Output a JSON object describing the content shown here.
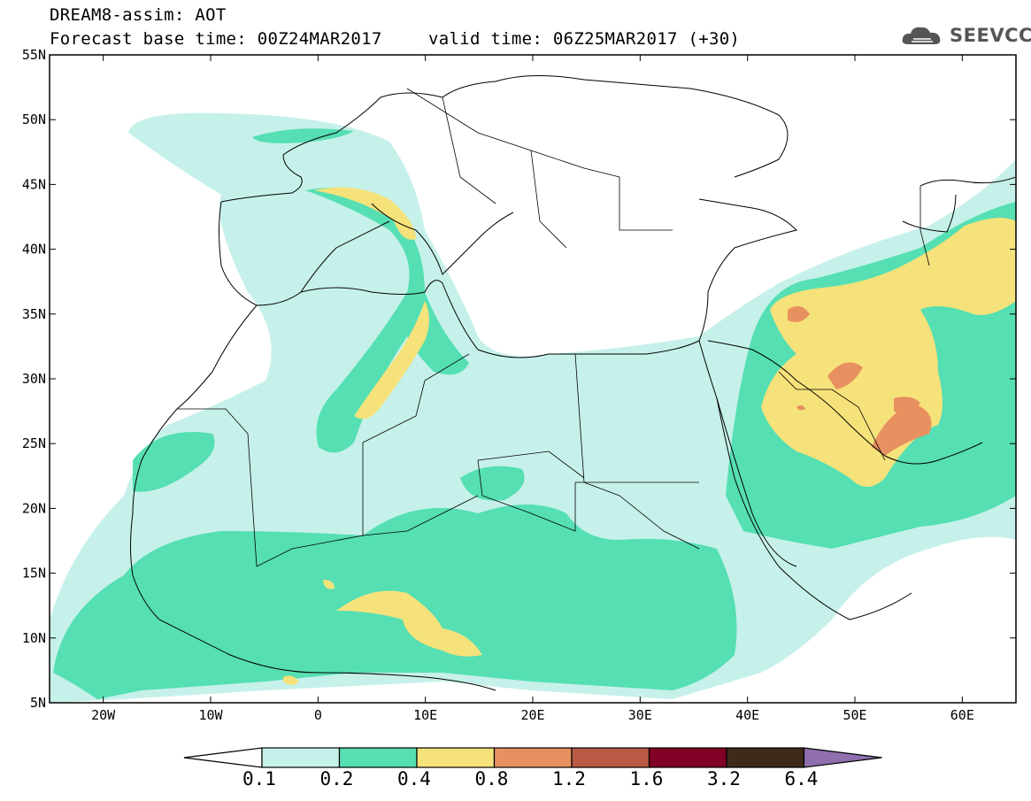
{
  "header": {
    "title_line1": "DREAM8-assim: AOT",
    "title_line2": "Forecast base time: 00Z24MAR2017",
    "valid_time": "valid time: 06Z25MAR2017 (+30)",
    "logo_text": "SEEVCCC"
  },
  "axes": {
    "lat_labels": [
      "55N",
      "50N",
      "45N",
      "40N",
      "35N",
      "30N",
      "25N",
      "20N",
      "15N",
      "10N",
      "5N"
    ],
    "lon_labels": [
      "20W",
      "10W",
      "0",
      "10E",
      "20E",
      "30E",
      "40E",
      "50E",
      "60E"
    ],
    "lon_range": [
      -25,
      65
    ],
    "lat_range": [
      5,
      55
    ]
  },
  "colorbar": {
    "labels": [
      "0.1",
      "0.2",
      "0.4",
      "0.8",
      "1.2",
      "1.6",
      "3.2",
      "6.4"
    ],
    "colors": [
      "#ffffff",
      "#c6f1ea",
      "#55dfb3",
      "#f5e27a",
      "#e89160",
      "#b85a44",
      "#800026",
      "#3f2a1a",
      "#8f6fae"
    ]
  },
  "icons": {
    "logo": "cloud-icon"
  }
}
